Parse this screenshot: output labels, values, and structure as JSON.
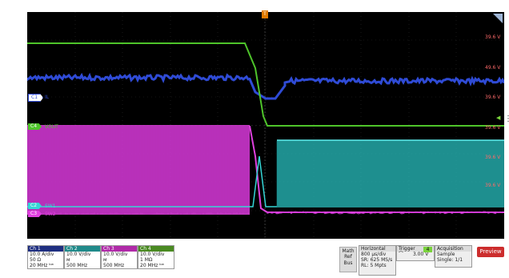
{
  "trigger_marker": "T",
  "ref_labels": [
    "39.6 V",
    "49.6 V",
    "39.6 V",
    "39.6 V",
    "39.6 V",
    "39.6 V"
  ],
  "channels_on_screen": [
    {
      "num": "C1",
      "name": "IL",
      "color": "#2f4bd6",
      "tag_bg": "#ffffff",
      "tag_fg": "#2f4bd6"
    },
    {
      "num": "C4",
      "name": "VOUT",
      "color": "#4ec42a",
      "tag_bg": "#4ec42a",
      "tag_fg": "#ffffff"
    },
    {
      "num": "C2",
      "name": "SW1",
      "color": "#35d6d6",
      "tag_bg": "#35d6d6",
      "tag_fg": "#ffffff"
    },
    {
      "num": "C3",
      "name": "SW2",
      "color": "#e040e0",
      "tag_bg": "#e040e0",
      "tag_fg": "#ffffff"
    }
  ],
  "channel_boxes": [
    {
      "title": "Ch 1",
      "scale": "10.0 A/div",
      "coupling": "50 Ω",
      "bw": "20 MHz ᵇʷ",
      "color": "#1f2f80"
    },
    {
      "title": "Ch 2",
      "scale": "10.0 V/div",
      "coupling": "ᴍ",
      "bw": "500 MHz",
      "color": "#208a8a"
    },
    {
      "title": "Ch 3",
      "scale": "10.0 V/div",
      "coupling": "ᴍ",
      "bw": "500 MHz",
      "color": "#b02aa8"
    },
    {
      "title": "Ch 4",
      "scale": "10.0 V/div",
      "coupling": "1 MΩ",
      "bw": "20 MHz ᵇʷ",
      "color": "#4a8a22"
    }
  ],
  "math_ref_bus": [
    "Math",
    "Ref",
    "Bus"
  ],
  "horizontal": {
    "title": "Horizontal",
    "rows": [
      "800 µs/div",
      "SR: 625 MS/s",
      "RL: 5 Mpts"
    ]
  },
  "trigger": {
    "title": "Trigger",
    "badge": "4",
    "slope": "⌒",
    "level": "3.00 V"
  },
  "acquisition": {
    "title": "Acquisition",
    "rows": [
      "Sample",
      "Single: 1/1"
    ]
  },
  "preview_label": "Preview",
  "colors": {
    "ch1": "#2f4bd6",
    "ch2": "#35d6d6",
    "ch3": "#e040e0",
    "ch4": "#4ec42a",
    "background": "#000000"
  }
}
